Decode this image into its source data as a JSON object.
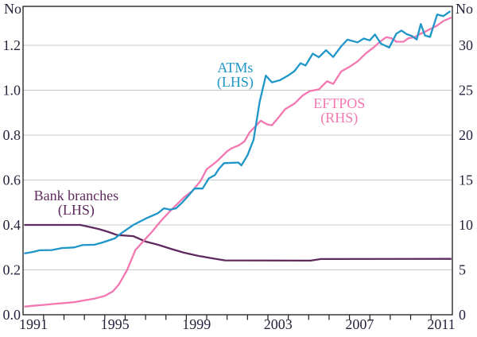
{
  "chart_data": {
    "type": "line",
    "title": "",
    "grid": true,
    "background": "#ffffff",
    "frame_color": "#1a1a1a",
    "gridline_color": "#c9c9c9",
    "text_color": "#24243c",
    "x_axis": {
      "tick_labels": [
        "1991",
        "1995",
        "1999",
        "2003",
        "2007",
        "2011"
      ],
      "tick_years": [
        1991,
        1995,
        1999,
        2003,
        2007,
        2011
      ],
      "range": [
        1990.55,
        2011.55
      ],
      "minor_ticks": "between each year"
    },
    "left_axis": {
      "unit_label": "No",
      "tick_labels": [
        "0.0",
        "0.2",
        "0.4",
        "0.6",
        "0.8",
        "1.0",
        "1.2"
      ],
      "tick_values": [
        0.0,
        0.2,
        0.4,
        0.6,
        0.8,
        1.0,
        1.2
      ],
      "range": [
        0,
        1.373
      ]
    },
    "right_axis": {
      "unit_label": "No",
      "tick_labels": [
        "0",
        "5",
        "10",
        "15",
        "20",
        "25",
        "30"
      ],
      "tick_values": [
        0,
        5,
        10,
        15,
        20,
        25,
        30
      ],
      "range": [
        0,
        34.3
      ]
    },
    "series": [
      {
        "name": "Bank branches",
        "axis": "left",
        "color": "#5F2A5E",
        "annotation": {
          "lines": [
            "Bank branches",
            "(LHS)"
          ],
          "year": 1993.1,
          "value": 0.51
        },
        "points": [
          [
            1990.55,
            0.4
          ],
          [
            1993.3,
            0.4
          ],
          [
            1993.7,
            0.392
          ],
          [
            1994.2,
            0.382
          ],
          [
            1994.7,
            0.368
          ],
          [
            1995.1,
            0.355
          ],
          [
            1995.9,
            0.35
          ],
          [
            1996.5,
            0.326
          ],
          [
            1997.1,
            0.312
          ],
          [
            1997.8,
            0.292
          ],
          [
            1998.4,
            0.276
          ],
          [
            1999.1,
            0.262
          ],
          [
            1999.8,
            0.251
          ],
          [
            2000.4,
            0.242
          ],
          [
            2004.6,
            0.241
          ],
          [
            2005.1,
            0.248
          ],
          [
            2011.5,
            0.249
          ]
        ]
      },
      {
        "name": "EFTPOS",
        "axis": "right",
        "color": "#F377B1",
        "annotation": {
          "lines": [
            "EFTPOS",
            "(RHS)"
          ],
          "year": 2006.0,
          "value": 23.0
        },
        "points": [
          [
            1990.55,
            0.9
          ],
          [
            1991.0,
            1.0
          ],
          [
            1991.5,
            1.1
          ],
          [
            1992.0,
            1.2
          ],
          [
            1992.5,
            1.3
          ],
          [
            1993.0,
            1.4
          ],
          [
            1993.5,
            1.6
          ],
          [
            1994.0,
            1.8
          ],
          [
            1994.5,
            2.1
          ],
          [
            1994.9,
            2.6
          ],
          [
            1995.2,
            3.4
          ],
          [
            1995.6,
            5.0
          ],
          [
            1996.0,
            7.2
          ],
          [
            1996.4,
            8.2
          ],
          [
            1996.8,
            9.2
          ],
          [
            1997.2,
            10.3
          ],
          [
            1997.6,
            11.3
          ],
          [
            1998.0,
            12.2
          ],
          [
            1998.4,
            13.1
          ],
          [
            1998.8,
            13.8
          ],
          [
            1999.2,
            14.9
          ],
          [
            1999.5,
            16.2
          ],
          [
            1999.9,
            16.9
          ],
          [
            2000.1,
            17.3
          ],
          [
            2000.5,
            18.2
          ],
          [
            2000.7,
            18.5
          ],
          [
            2001.1,
            18.9
          ],
          [
            2001.35,
            19.3
          ],
          [
            2001.6,
            20.3
          ],
          [
            2001.9,
            21.0
          ],
          [
            2002.15,
            21.6
          ],
          [
            2002.45,
            21.2
          ],
          [
            2002.7,
            21.1
          ],
          [
            2003.0,
            21.9
          ],
          [
            2003.35,
            22.9
          ],
          [
            2003.8,
            23.5
          ],
          [
            2004.2,
            24.4
          ],
          [
            2004.55,
            24.9
          ],
          [
            2005.0,
            25.1
          ],
          [
            2005.4,
            26.0
          ],
          [
            2005.7,
            25.7
          ],
          [
            2006.1,
            27.1
          ],
          [
            2006.5,
            27.6
          ],
          [
            2006.9,
            28.2
          ],
          [
            2007.3,
            29.1
          ],
          [
            2007.7,
            29.8
          ],
          [
            2008.0,
            30.4
          ],
          [
            2008.3,
            30.9
          ],
          [
            2008.55,
            30.8
          ],
          [
            2008.8,
            30.4
          ],
          [
            2009.15,
            30.4
          ],
          [
            2009.4,
            30.8
          ],
          [
            2009.7,
            30.9
          ],
          [
            2010.0,
            31.3
          ],
          [
            2010.2,
            31.5
          ],
          [
            2010.45,
            31.8
          ],
          [
            2010.8,
            32.2
          ],
          [
            2011.1,
            32.7
          ],
          [
            2011.5,
            33.1
          ]
        ]
      },
      {
        "name": "ATMs",
        "axis": "left",
        "color": "#1E96C8",
        "annotation": {
          "lines": [
            "ATMs",
            "(LHS)"
          ],
          "year": 2000.9,
          "value": 1.08
        },
        "points": [
          [
            1990.55,
            0.273
          ],
          [
            1991.0,
            0.28
          ],
          [
            1991.3,
            0.287
          ],
          [
            1991.9,
            0.288
          ],
          [
            1992.4,
            0.297
          ],
          [
            1993.0,
            0.3
          ],
          [
            1993.4,
            0.31
          ],
          [
            1994.0,
            0.312
          ],
          [
            1994.4,
            0.322
          ],
          [
            1995.0,
            0.34
          ],
          [
            1995.3,
            0.362
          ],
          [
            1995.9,
            0.4
          ],
          [
            1996.5,
            0.428
          ],
          [
            1997.1,
            0.452
          ],
          [
            1997.4,
            0.474
          ],
          [
            1997.7,
            0.468
          ],
          [
            1998.0,
            0.474
          ],
          [
            1998.3,
            0.5
          ],
          [
            1998.6,
            0.53
          ],
          [
            1998.9,
            0.562
          ],
          [
            1999.3,
            0.562
          ],
          [
            1999.6,
            0.607
          ],
          [
            1999.9,
            0.622
          ],
          [
            2000.1,
            0.65
          ],
          [
            2000.35,
            0.675
          ],
          [
            2001.05,
            0.678
          ],
          [
            2001.2,
            0.665
          ],
          [
            2001.5,
            0.71
          ],
          [
            2001.8,
            0.78
          ],
          [
            2002.1,
            0.95
          ],
          [
            2002.4,
            1.065
          ],
          [
            2002.7,
            1.035
          ],
          [
            2003.1,
            1.045
          ],
          [
            2003.5,
            1.066
          ],
          [
            2003.8,
            1.085
          ],
          [
            2004.1,
            1.12
          ],
          [
            2004.35,
            1.11
          ],
          [
            2004.7,
            1.163
          ],
          [
            2005.0,
            1.147
          ],
          [
            2005.35,
            1.178
          ],
          [
            2005.7,
            1.148
          ],
          [
            2006.1,
            1.196
          ],
          [
            2006.4,
            1.225
          ],
          [
            2006.9,
            1.213
          ],
          [
            2007.2,
            1.23
          ],
          [
            2007.5,
            1.222
          ],
          [
            2007.75,
            1.248
          ],
          [
            2008.05,
            1.207
          ],
          [
            2008.45,
            1.19
          ],
          [
            2008.8,
            1.252
          ],
          [
            2009.05,
            1.266
          ],
          [
            2009.3,
            1.25
          ],
          [
            2009.55,
            1.242
          ],
          [
            2009.8,
            1.226
          ],
          [
            2010.0,
            1.295
          ],
          [
            2010.2,
            1.244
          ],
          [
            2010.45,
            1.237
          ],
          [
            2010.8,
            1.337
          ],
          [
            2011.1,
            1.33
          ],
          [
            2011.45,
            1.352
          ]
        ]
      }
    ]
  }
}
